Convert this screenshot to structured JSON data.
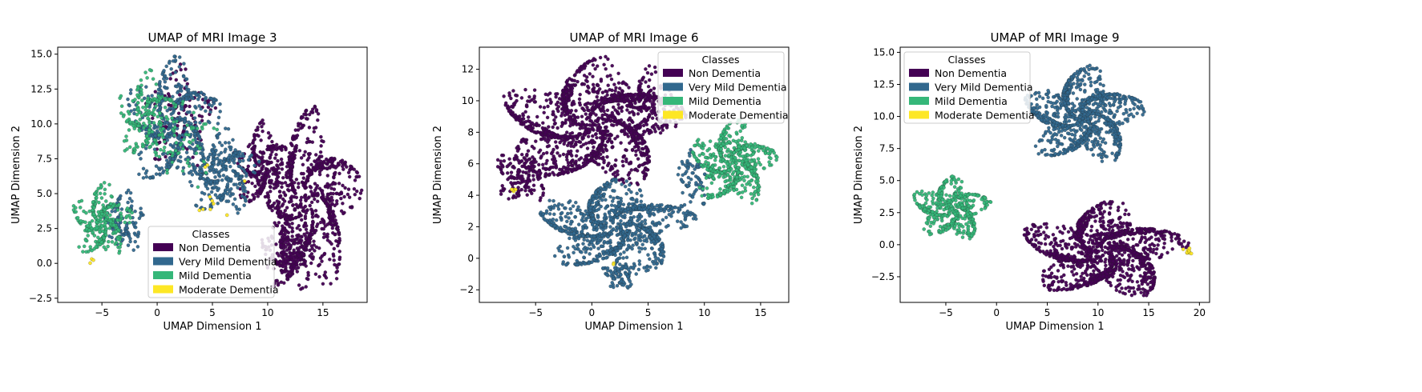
{
  "chart_data": [
    {
      "type": "scatter",
      "title": "UMAP of MRI Image 3",
      "xlabel": "UMAP Dimension 1",
      "ylabel": "UMAP Dimension 2",
      "xlim": [
        -9,
        19
      ],
      "ylim": [
        -2.8,
        15.5
      ],
      "xticks": [
        -5,
        0,
        5,
        10,
        15
      ],
      "yticks": [
        -2.5,
        0.0,
        2.5,
        5.0,
        7.5,
        10.0,
        12.5,
        15.0
      ],
      "grid": false,
      "legend": {
        "title": "Classes",
        "placement": "lower-center"
      },
      "series": [
        {
          "name": "Non Dementia",
          "color": "#440154",
          "clusters": [
            {
              "cx": 13.5,
              "cy": 4.5,
              "rx": 4.5,
              "ry": 6.0,
              "n": 900
            },
            {
              "cx": 9.5,
              "cy": 7.0,
              "rx": 2.5,
              "ry": 3.0,
              "n": 250
            },
            {
              "cx": 12.0,
              "cy": 0.5,
              "rx": 2.5,
              "ry": 2.5,
              "n": 200
            },
            {
              "cx": 2.0,
              "cy": 10.5,
              "rx": 3.0,
              "ry": 3.5,
              "n": 120
            }
          ]
        },
        {
          "name": "Very Mild Dementia",
          "color": "#31688e",
          "clusters": [
            {
              "cx": 1.5,
              "cy": 10.0,
              "rx": 4.0,
              "ry": 4.5,
              "n": 500
            },
            {
              "cx": 6.0,
              "cy": 6.5,
              "rx": 3.0,
              "ry": 3.0,
              "n": 300
            },
            {
              "cx": -3.0,
              "cy": 3.0,
              "rx": 2.0,
              "ry": 2.0,
              "n": 120
            }
          ]
        },
        {
          "name": "Mild Dementia",
          "color": "#35b779",
          "clusters": [
            {
              "cx": -5.0,
              "cy": 3.0,
              "rx": 2.5,
              "ry": 2.5,
              "n": 300
            },
            {
              "cx": -1.0,
              "cy": 10.5,
              "rx": 2.5,
              "ry": 3.0,
              "n": 200
            },
            {
              "cx": 2.5,
              "cy": 8.5,
              "rx": 3.0,
              "ry": 3.0,
              "n": 60
            }
          ]
        },
        {
          "name": "Moderate Dementia",
          "color": "#fde725",
          "clusters": [
            {
              "cx": 5.0,
              "cy": 5.2,
              "rx": 3.0,
              "ry": 2.0,
              "n": 10
            },
            {
              "cx": -6.0,
              "cy": 0.2,
              "rx": 0.5,
              "ry": 0.3,
              "n": 3
            }
          ]
        }
      ]
    },
    {
      "type": "scatter",
      "title": "UMAP of MRI Image 6",
      "xlabel": "UMAP Dimension 1",
      "ylabel": "UMAP Dimension 2",
      "xlim": [
        -10,
        17.5
      ],
      "ylim": [
        -2.8,
        13.4
      ],
      "xticks": [
        -5,
        0,
        5,
        10,
        15
      ],
      "yticks": [
        -2,
        0,
        2,
        4,
        6,
        8,
        10,
        12
      ],
      "grid": false,
      "legend": {
        "title": "Classes",
        "placement": "upper-right"
      },
      "series": [
        {
          "name": "Non Dementia",
          "color": "#440154",
          "clusters": [
            {
              "cx": 0.0,
              "cy": 8.5,
              "rx": 7.5,
              "ry": 3.8,
              "n": 1400
            },
            {
              "cx": -6.0,
              "cy": 5.5,
              "rx": 2.5,
              "ry": 2.0,
              "n": 200
            },
            {
              "cx": 5.0,
              "cy": 10.0,
              "rx": 2.5,
              "ry": 2.0,
              "n": 150
            }
          ]
        },
        {
          "name": "Very Mild Dementia",
          "color": "#31688e",
          "clusters": [
            {
              "cx": 2.0,
              "cy": 2.0,
              "rx": 6.5,
              "ry": 2.8,
              "n": 1100
            },
            {
              "cx": 2.5,
              "cy": -1.0,
              "rx": 1.5,
              "ry": 1.0,
              "n": 100
            },
            {
              "cx": 9.0,
              "cy": 5.0,
              "rx": 1.5,
              "ry": 2.0,
              "n": 80
            }
          ]
        },
        {
          "name": "Mild Dementia",
          "color": "#35b779",
          "clusters": [
            {
              "cx": 12.5,
              "cy": 6.0,
              "rx": 3.5,
              "ry": 2.5,
              "n": 600
            }
          ]
        },
        {
          "name": "Moderate Dementia",
          "color": "#fde725",
          "clusters": [
            {
              "cx": -7.0,
              "cy": 4.3,
              "rx": 0.5,
              "ry": 0.15,
              "n": 6
            },
            {
              "cx": 2.0,
              "cy": -0.3,
              "rx": 0.2,
              "ry": 0.2,
              "n": 2
            }
          ]
        }
      ]
    },
    {
      "type": "scatter",
      "title": "UMAP of MRI Image 9",
      "xlabel": "UMAP Dimension 1",
      "ylabel": "UMAP Dimension 2",
      "xlim": [
        -9.5,
        21
      ],
      "ylim": [
        -4.5,
        15.4
      ],
      "xticks": [
        -5,
        0,
        5,
        10,
        15,
        20
      ],
      "yticks": [
        -2.5,
        0.0,
        2.5,
        5.0,
        7.5,
        10.0,
        12.5,
        15.0
      ],
      "grid": false,
      "legend": {
        "title": "Classes",
        "placement": "upper-left"
      },
      "series": [
        {
          "name": "Non Dementia",
          "color": "#440154",
          "clusters": [
            {
              "cx": 10.5,
              "cy": -0.5,
              "rx": 7.5,
              "ry": 3.5,
              "n": 1400
            }
          ]
        },
        {
          "name": "Very Mild Dementia",
          "color": "#31688e",
          "clusters": [
            {
              "cx": 8.5,
              "cy": 10.0,
              "rx": 5.5,
              "ry": 3.5,
              "n": 1000
            }
          ]
        },
        {
          "name": "Mild Dementia",
          "color": "#35b779",
          "clusters": [
            {
              "cx": -4.5,
              "cy": 2.8,
              "rx": 3.5,
              "ry": 2.3,
              "n": 500
            }
          ]
        },
        {
          "name": "Moderate Dementia",
          "color": "#fde725",
          "clusters": [
            {
              "cx": 19.0,
              "cy": -0.5,
              "rx": 0.6,
              "ry": 0.5,
              "n": 10
            }
          ]
        }
      ]
    }
  ]
}
